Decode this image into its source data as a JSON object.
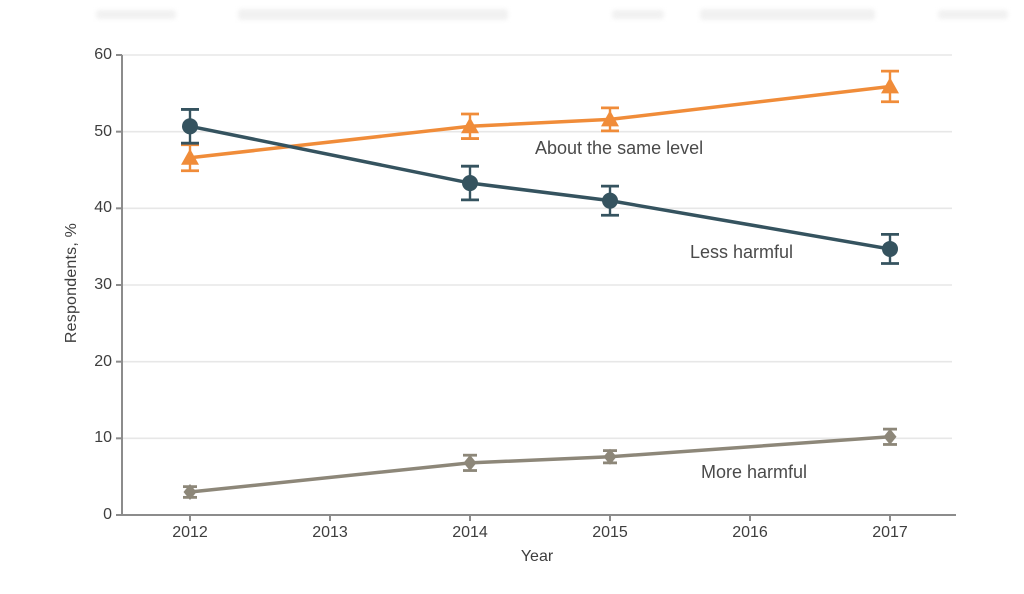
{
  "figure": {
    "title_visible": false,
    "y_axis_label": "Respondents, %",
    "x_axis_label": "Year"
  },
  "colors": {
    "about_same": "#f08c39",
    "less_harmful": "#35535f",
    "more_harmful": "#8d8779",
    "grid": "#e7e7e7",
    "axis": "#8c8c8c",
    "text": "#3e3e3e"
  },
  "chart_data": {
    "type": "line",
    "title": "",
    "xlabel": "Year",
    "ylabel": "Respondents, %",
    "x": [
      2012,
      2014,
      2015,
      2017
    ],
    "x_ticks": [
      2012,
      2013,
      2014,
      2015,
      2016,
      2017
    ],
    "y_ticks": [
      0,
      10,
      20,
      30,
      40,
      50,
      60
    ],
    "ylim": [
      0,
      60
    ],
    "xlim": [
      2011.5,
      2017.5
    ],
    "grid": "horizontal",
    "legend_position": "inline-annotations",
    "error_bars": true,
    "series": [
      {
        "name": "About the same level",
        "marker": "triangle",
        "color": "#f08c39",
        "values": [
          46.6,
          50.7,
          51.6,
          55.9
        ],
        "error": [
          1.7,
          1.6,
          1.5,
          2.0
        ]
      },
      {
        "name": "Less harmful",
        "marker": "circle",
        "color": "#35535f",
        "values": [
          50.7,
          43.3,
          41.0,
          34.7
        ],
        "error": [
          2.2,
          2.2,
          1.9,
          1.9
        ]
      },
      {
        "name": "More harmful",
        "marker": "diamond",
        "color": "#8d8779",
        "values": [
          3.0,
          6.8,
          7.6,
          10.2
        ],
        "error": [
          0.7,
          1.0,
          0.8,
          1.0
        ]
      }
    ],
    "annotations": [
      {
        "text": "About the same level",
        "x": 2014.45,
        "y": 47.5
      },
      {
        "text": "Less harmful",
        "x": 2015.6,
        "y": 34.0
      },
      {
        "text": "More harmful",
        "x": 2015.65,
        "y": 6.3
      }
    ]
  }
}
